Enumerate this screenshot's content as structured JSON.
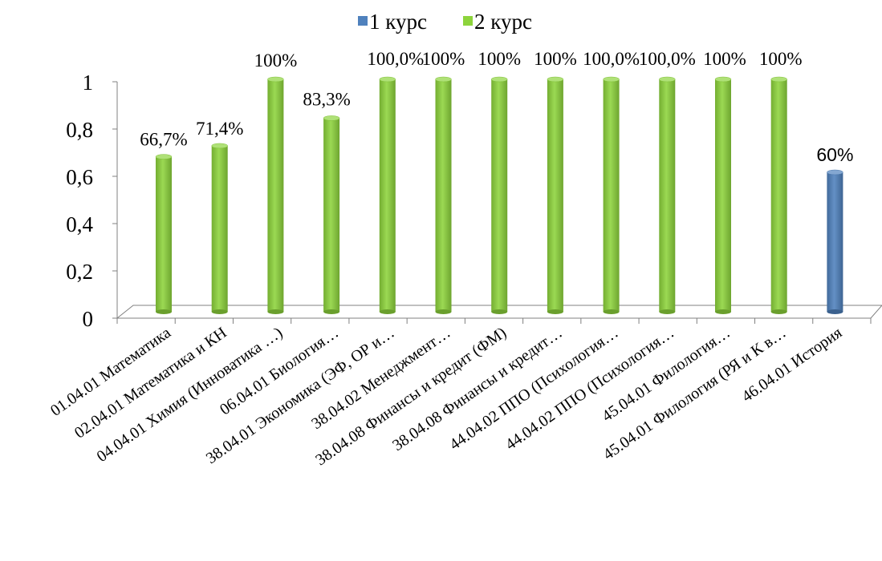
{
  "chart_data": {
    "type": "bar",
    "legend_position": "top",
    "grid": false,
    "ylim": [
      0,
      1
    ],
    "yticks": [
      "0",
      "0,2",
      "0,4",
      "0,6",
      "0,8",
      "1"
    ],
    "legend": [
      {
        "name": "1 курс",
        "color": "#4f81bd"
      },
      {
        "name": "2 курс",
        "color": "#8dd43c"
      }
    ],
    "bars": [
      {
        "category": "01.04.01 Математика",
        "value": 0.667,
        "label": "66,7%",
        "series": "2 курс"
      },
      {
        "category": "02.04.01 Математика и КН",
        "value": 0.714,
        "label": "71,4%",
        "series": "2 курс"
      },
      {
        "category": "04.04.01 Химия (Инноватика …)",
        "value": 1.0,
        "label": "100%",
        "series": "2 курс"
      },
      {
        "category": "06.04.01 Биология…",
        "value": 0.833,
        "label": "83,3%",
        "series": "2 курс"
      },
      {
        "category": "38.04.01 Экономика (ЭФ, ОР и…",
        "value": 1.0,
        "label": "100,0%",
        "series": "2 курс"
      },
      {
        "category": "38.04.02 Менеджмент…",
        "value": 1.0,
        "label": "100%",
        "series": "2 курс"
      },
      {
        "category": "38.04.08 Финансы и кредит (ФМ)",
        "value": 1.0,
        "label": "100%",
        "series": "2 курс"
      },
      {
        "category": "38.04.08 Финансы и кредит…",
        "value": 1.0,
        "label": "100%",
        "series": "2 курс"
      },
      {
        "category": "44.04.02 ППО (Психология…",
        "value": 1.0,
        "label": "100,0%",
        "series": "2 курс"
      },
      {
        "category": "44.04.02 ППО (Психология…",
        "value": 1.0,
        "label": "100,0%",
        "series": "2 курс"
      },
      {
        "category": "45.04.01 Филология…",
        "value": 1.0,
        "label": "100%",
        "series": "2 курс"
      },
      {
        "category": "45.04.01 Филология (РЯ и К в…",
        "value": 1.0,
        "label": "100%",
        "series": "2 курс"
      },
      {
        "category": "46.04.01 История",
        "value": 0.6,
        "label": "60%",
        "series": "1 курс",
        "label_font": "sans"
      }
    ]
  }
}
